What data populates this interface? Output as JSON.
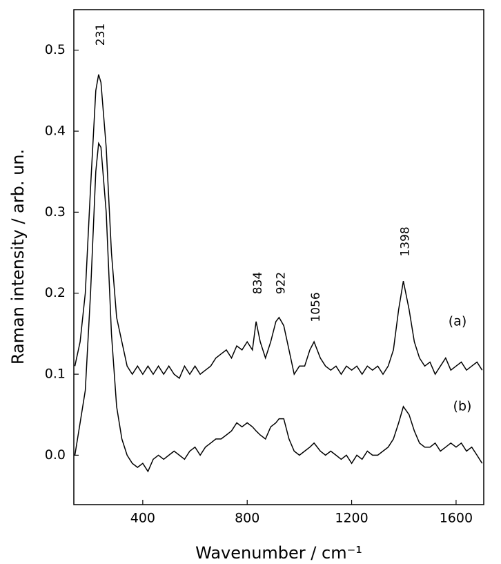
{
  "chart_data": {
    "type": "line",
    "xlabel": "Wavenumber / cm⁻¹",
    "ylabel": "Raman intensity / arb. un.",
    "peaks": [
      231,
      834,
      922,
      1056,
      1398
    ],
    "x": [
      140,
      160,
      180,
      200,
      220,
      231,
      240,
      260,
      280,
      300,
      320,
      340,
      360,
      380,
      400,
      420,
      440,
      460,
      480,
      500,
      520,
      540,
      560,
      580,
      600,
      620,
      640,
      660,
      680,
      700,
      720,
      740,
      760,
      780,
      800,
      820,
      834,
      850,
      870,
      890,
      910,
      922,
      940,
      960,
      980,
      1000,
      1020,
      1040,
      1056,
      1080,
      1100,
      1120,
      1140,
      1160,
      1180,
      1200,
      1220,
      1240,
      1260,
      1280,
      1300,
      1320,
      1340,
      1360,
      1380,
      1398,
      1420,
      1440,
      1460,
      1480,
      1500,
      1520,
      1540,
      1560,
      1580,
      1600,
      1620,
      1640,
      1660,
      1680,
      1700
    ],
    "series": [
      {
        "name": "(a)",
        "color": "#000000",
        "values": [
          0.11,
          0.14,
          0.2,
          0.33,
          0.45,
          0.47,
          0.46,
          0.38,
          0.25,
          0.17,
          0.14,
          0.11,
          0.1,
          0.11,
          0.1,
          0.11,
          0.1,
          0.11,
          0.1,
          0.11,
          0.1,
          0.095,
          0.11,
          0.1,
          0.11,
          0.1,
          0.105,
          0.11,
          0.12,
          0.125,
          0.13,
          0.12,
          0.135,
          0.13,
          0.14,
          0.13,
          0.165,
          0.14,
          0.12,
          0.14,
          0.165,
          0.17,
          0.16,
          0.13,
          0.1,
          0.11,
          0.11,
          0.13,
          0.14,
          0.12,
          0.11,
          0.105,
          0.11,
          0.1,
          0.11,
          0.105,
          0.11,
          0.1,
          0.11,
          0.105,
          0.11,
          0.1,
          0.11,
          0.13,
          0.18,
          0.215,
          0.18,
          0.14,
          0.12,
          0.11,
          0.115,
          0.1,
          0.11,
          0.12,
          0.105,
          0.11,
          0.115,
          0.105,
          0.11,
          0.115,
          0.105
        ]
      },
      {
        "name": "(b)",
        "color": "#000000",
        "values": [
          0.0,
          0.04,
          0.08,
          0.2,
          0.35,
          0.385,
          0.38,
          0.3,
          0.15,
          0.06,
          0.02,
          0.0,
          -0.01,
          -0.015,
          -0.01,
          -0.02,
          -0.005,
          0.0,
          -0.005,
          0.0,
          0.005,
          0.0,
          -0.005,
          0.005,
          0.01,
          0.0,
          0.01,
          0.015,
          0.02,
          0.02,
          0.025,
          0.03,
          0.04,
          0.035,
          0.04,
          0.035,
          0.03,
          0.025,
          0.02,
          0.035,
          0.04,
          0.045,
          0.045,
          0.02,
          0.005,
          0.0,
          0.005,
          0.01,
          0.015,
          0.005,
          0.0,
          0.005,
          0.0,
          -0.005,
          0.0,
          -0.01,
          0.0,
          -0.005,
          0.005,
          0.0,
          0.0,
          0.005,
          0.01,
          0.02,
          0.04,
          0.06,
          0.05,
          0.03,
          0.015,
          0.01,
          0.01,
          0.015,
          0.005,
          0.01,
          0.015,
          0.01,
          0.015,
          0.005,
          0.01,
          0.0,
          -0.01
        ]
      }
    ],
    "xlim": [
      136,
      1706
    ],
    "ylim": [
      -0.061,
      0.55
    ],
    "xticks": [
      400,
      800,
      1200,
      1600
    ],
    "yticks": [
      {
        "value": 0,
        "label": "0.0"
      },
      0.1,
      0.2,
      0.3,
      0.4,
      0.5
    ]
  }
}
